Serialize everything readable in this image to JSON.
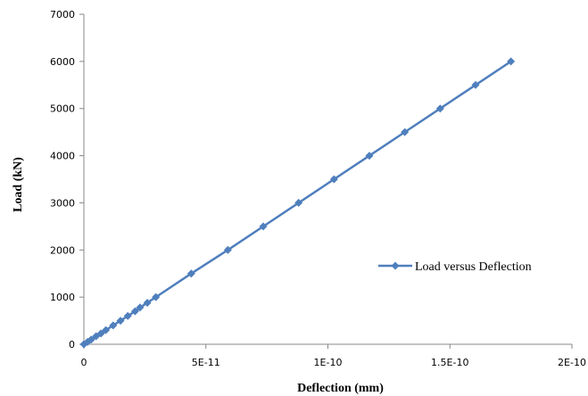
{
  "chart_data": {
    "type": "scatter",
    "xlabel": "Deflection (mm)",
    "ylabel": "Load (kN)",
    "xlim": [
      0,
      2e-10
    ],
    "ylim": [
      0,
      7000
    ],
    "x_ticks": [
      0,
      5e-11,
      1e-10,
      1.5e-10,
      2e-10
    ],
    "x_tick_labels": [
      "0",
      "5E-11",
      "1E-10",
      "1.5E-10",
      "2E-10"
    ],
    "y_ticks": [
      0,
      1000,
      2000,
      3000,
      4000,
      5000,
      6000,
      7000
    ],
    "y_tick_labels": [
      "0",
      "1000",
      "2000",
      "3000",
      "4000",
      "5000",
      "6000",
      "7000"
    ],
    "grid": false,
    "legend_position": "right",
    "series": [
      {
        "name": "Load versus Deflection",
        "color": "#4f7fbd",
        "marker": "diamond",
        "line": true,
        "x": [
          0,
          1.5e-12,
          3e-12,
          5e-12,
          7e-12,
          9e-12,
          1.2e-11,
          1.5e-11,
          1.8e-11,
          2.1e-11,
          2.3e-11,
          2.6e-11,
          2.95e-11,
          4.4e-11,
          5.9e-11,
          7.35e-11,
          8.8e-11,
          1.025e-10,
          1.17e-10,
          1.315e-10,
          1.46e-10,
          1.605e-10,
          1.75e-10
        ],
        "y": [
          0,
          50,
          100,
          170,
          230,
          300,
          400,
          500,
          600,
          700,
          780,
          880,
          1000,
          1500,
          2000,
          2500,
          3000,
          3500,
          4000,
          4500,
          5000,
          5500,
          6000
        ]
      }
    ]
  }
}
